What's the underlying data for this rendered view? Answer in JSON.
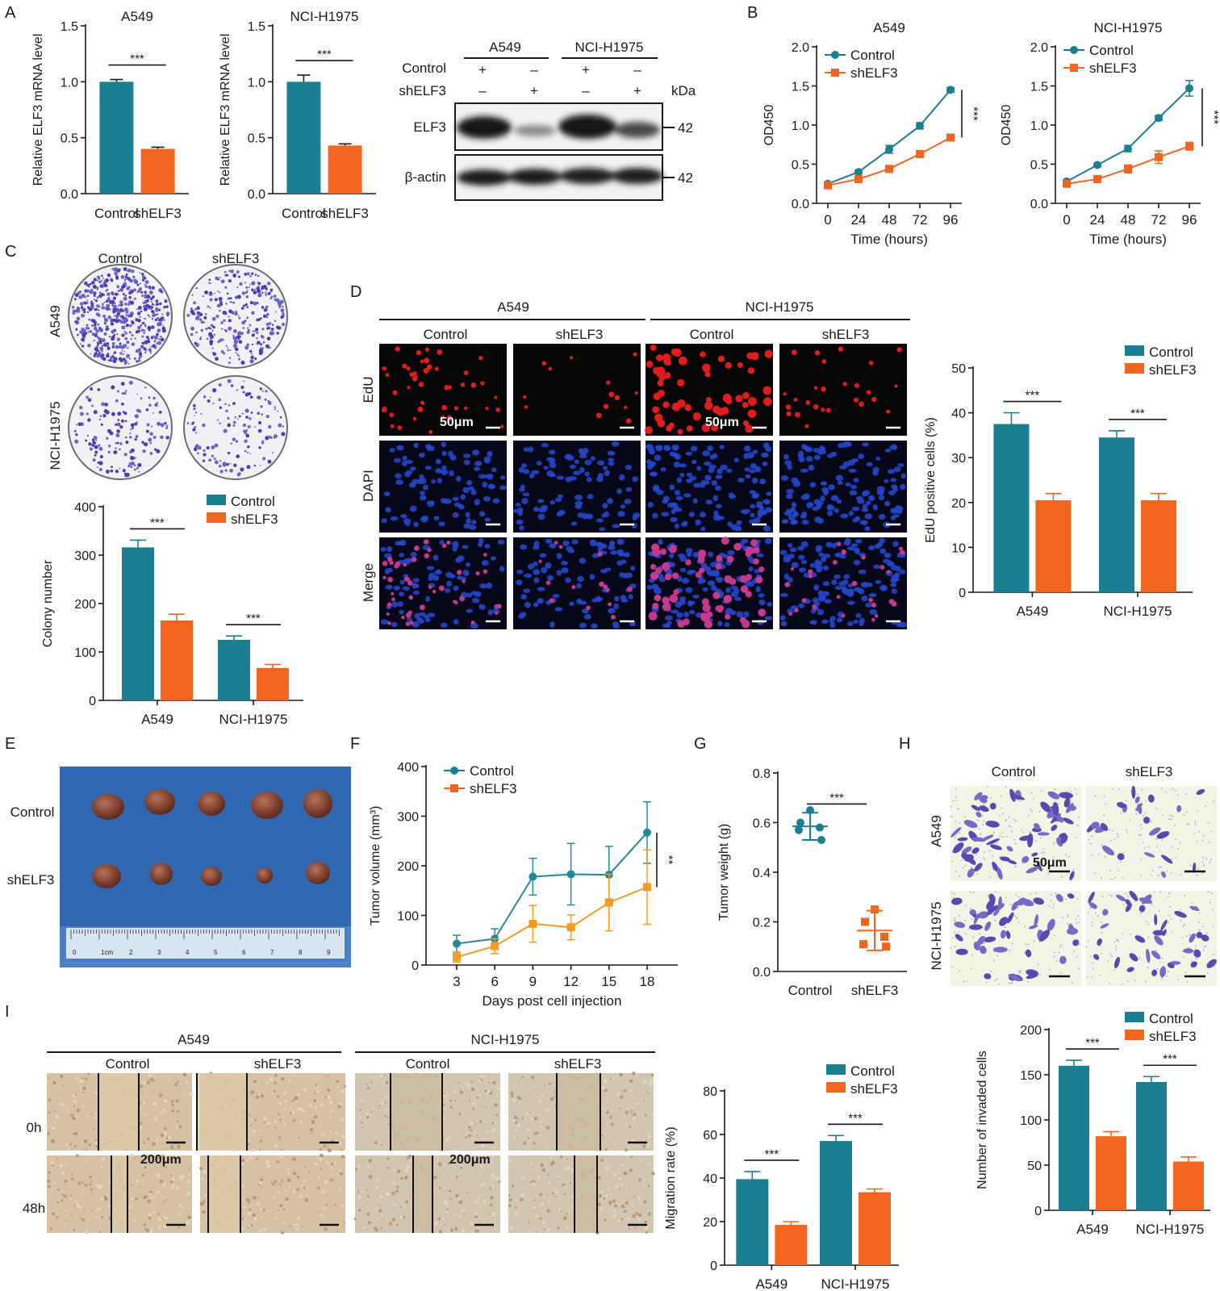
{
  "colors": {
    "control": "#1b7f94",
    "shELF3": "#f2651e",
    "tumor_control": "#1e8a9a",
    "tumor_shELF3": "#f59a23",
    "axis": "#1a1a1a"
  },
  "panels": {
    "A": "A",
    "B": "B",
    "C": "C",
    "D": "D",
    "E": "E",
    "F": "F",
    "G": "G",
    "H": "H",
    "I": "I"
  },
  "groups": {
    "control": "Control",
    "sh": "shELF3"
  },
  "cell_lines": {
    "a549": "A549",
    "h1975": "NCI-H1975"
  },
  "sig": {
    "three": "***",
    "two": "**"
  },
  "blot": {
    "row_control": "Control",
    "row_sh": "shELF3",
    "plus": "+",
    "minus": "–",
    "kda": "kDa",
    "elf3": "ELF3",
    "actin": "β-actin",
    "mw_elf3": "42",
    "mw_actin": "42"
  },
  "images": {
    "edu": "EdU",
    "dapi": "DAPI",
    "merge": "Merge",
    "scale_50": "50μm",
    "scale_200": "200μm",
    "t0": "0h",
    "t48": "48h",
    "ruler_marks": [
      "0",
      "1cm",
      "2",
      "3",
      "4",
      "5",
      "6",
      "7",
      "8",
      "9"
    ]
  },
  "chart_data": [
    {
      "id": "A1",
      "type": "bar",
      "title": "A549",
      "ylabel": "Relative ELF3 mRNA level",
      "categories": [
        "Control",
        "shELF3"
      ],
      "values": [
        1.0,
        0.4
      ],
      "errors": [
        0.02,
        0.015
      ],
      "ylim": [
        0,
        1.5
      ],
      "yticks": [
        "0.0",
        "0.5",
        "1.0",
        "1.5"
      ],
      "sig": "***"
    },
    {
      "id": "A2",
      "type": "bar",
      "title": "NCI-H1975",
      "ylabel": "Relative ELF3 mRNA level",
      "categories": [
        "Control",
        "shELF3"
      ],
      "values": [
        1.0,
        0.43
      ],
      "errors": [
        0.06,
        0.015
      ],
      "ylim": [
        0,
        1.5
      ],
      "yticks": [
        "0.0",
        "0.5",
        "1.0",
        "1.5"
      ],
      "sig": "***"
    },
    {
      "id": "B1",
      "type": "line",
      "title": "A549",
      "xlabel": "Time (hours)",
      "ylabel": "OD450",
      "x": [
        0,
        24,
        48,
        72,
        96
      ],
      "xticks": [
        "0",
        "24",
        "48",
        "72",
        "96"
      ],
      "ylim": [
        0,
        2.0
      ],
      "yticks": [
        "0.0",
        "0.5",
        "1.0",
        "1.5",
        "2.0"
      ],
      "legend": "top-left",
      "sig": "***",
      "series": [
        {
          "name": "Control",
          "values": [
            0.25,
            0.4,
            0.69,
            0.99,
            1.45
          ],
          "errors": [
            0.01,
            0.02,
            0.05,
            0.04,
            0.03
          ]
        },
        {
          "name": "shELF3",
          "values": [
            0.23,
            0.31,
            0.44,
            0.63,
            0.84
          ],
          "errors": [
            0.01,
            0.02,
            0.03,
            0.03,
            0.04
          ]
        }
      ]
    },
    {
      "id": "B2",
      "type": "line",
      "title": "NCI-H1975",
      "xlabel": "Time (hours)",
      "ylabel": "OD450",
      "x": [
        0,
        24,
        48,
        72,
        96
      ],
      "xticks": [
        "0",
        "24",
        "48",
        "72",
        "96"
      ],
      "ylim": [
        0,
        2.0
      ],
      "yticks": [
        "0.0",
        "0.5",
        "1.0",
        "1.5",
        "2.0"
      ],
      "legend": "top-left",
      "sig": "***",
      "series": [
        {
          "name": "Control",
          "values": [
            0.28,
            0.49,
            0.7,
            1.09,
            1.47
          ],
          "errors": [
            0.02,
            0.02,
            0.04,
            0.03,
            0.1
          ]
        },
        {
          "name": "shELF3",
          "values": [
            0.25,
            0.31,
            0.44,
            0.59,
            0.73
          ],
          "errors": [
            0.01,
            0.02,
            0.05,
            0.08,
            0.05
          ]
        }
      ]
    },
    {
      "id": "C",
      "type": "bar",
      "ylabel": "Colony  number",
      "categories": [
        "A549",
        "NCI-H1975"
      ],
      "ylim": [
        0,
        400
      ],
      "yticks": [
        "0",
        "100",
        "200",
        "300",
        "400"
      ],
      "legend": "top-right",
      "sig": [
        "***",
        "***"
      ],
      "series": [
        {
          "name": "Control",
          "values": [
            316,
            125
          ],
          "errors": [
            15,
            8
          ]
        },
        {
          "name": "shELF3",
          "values": [
            165,
            67
          ],
          "errors": [
            13,
            7
          ]
        }
      ]
    },
    {
      "id": "D",
      "type": "bar",
      "ylabel": "EdU positive cells (%)",
      "categories": [
        "A549",
        "NCI-H1975"
      ],
      "ylim": [
        0,
        50
      ],
      "yticks": [
        "0",
        "10",
        "20",
        "30",
        "40",
        "50"
      ],
      "legend": "top-right",
      "sig": [
        "***",
        "***"
      ],
      "series": [
        {
          "name": "Control",
          "values": [
            37.5,
            34.5
          ],
          "errors": [
            2.5,
            1.5
          ]
        },
        {
          "name": "shELF3",
          "values": [
            20.5,
            20.5
          ],
          "errors": [
            1.5,
            1.5
          ]
        }
      ]
    },
    {
      "id": "F",
      "type": "line",
      "xlabel": "Days post cell injection",
      "ylabel": "Tumor volume (mm³)",
      "x": [
        3,
        6,
        9,
        12,
        15,
        18
      ],
      "xticks": [
        "3",
        "6",
        "9",
        "12",
        "15",
        "18"
      ],
      "ylim": [
        0,
        400
      ],
      "yticks": [
        "0",
        "100",
        "200",
        "300",
        "400"
      ],
      "legend": "top-left",
      "sig": "**",
      "series": [
        {
          "name": "Control",
          "values": [
            43,
            53,
            178,
            183,
            182,
            267
          ],
          "errors": [
            17,
            20,
            37,
            62,
            57,
            62
          ]
        },
        {
          "name": "shELF3",
          "values": [
            16,
            38,
            83,
            76,
            126,
            157
          ],
          "errors": [
            10,
            15,
            37,
            25,
            57,
            75
          ]
        }
      ]
    },
    {
      "id": "G",
      "type": "scatter",
      "ylabel": "Tumor weight (g)",
      "categories": [
        "Control",
        "shELF3"
      ],
      "ylim": [
        0,
        0.8
      ],
      "yticks": [
        "0.0",
        "0.2",
        "0.4",
        "0.6",
        "0.8"
      ],
      "sig": "***",
      "groups": [
        {
          "name": "Control",
          "points": [
            0.65,
            0.6,
            0.58,
            0.57,
            0.53
          ],
          "mean": 0.585,
          "sd": 0.055
        },
        {
          "name": "shELF3",
          "points": [
            0.25,
            0.2,
            0.14,
            0.11,
            0.1
          ],
          "mean": 0.165,
          "sd": 0.08
        }
      ]
    },
    {
      "id": "H",
      "type": "bar",
      "ylabel": "Number of invaded cells",
      "categories": [
        "A549",
        "NCI-H1975"
      ],
      "ylim": [
        0,
        200
      ],
      "yticks": [
        "0",
        "50",
        "100",
        "150",
        "200"
      ],
      "legend": "top-right",
      "sig": [
        "***",
        "***"
      ],
      "series": [
        {
          "name": "Control",
          "values": [
            160,
            142
          ],
          "errors": [
            6,
            6
          ]
        },
        {
          "name": "shELF3",
          "values": [
            82,
            54
          ],
          "errors": [
            5,
            5
          ]
        }
      ]
    },
    {
      "id": "I",
      "type": "bar",
      "ylabel": "Migration rate (%)",
      "categories": [
        "A549",
        "NCI-H1975"
      ],
      "ylim": [
        0,
        80
      ],
      "yticks": [
        "0",
        "20",
        "40",
        "60",
        "80"
      ],
      "legend": "top-right",
      "sig": [
        "***",
        "***"
      ],
      "series": [
        {
          "name": "Control",
          "values": [
            39.5,
            57
          ],
          "errors": [
            3.5,
            2.5
          ]
        },
        {
          "name": "shELF3",
          "values": [
            18.5,
            33.5
          ],
          "errors": [
            1.5,
            1.5
          ]
        }
      ]
    }
  ]
}
